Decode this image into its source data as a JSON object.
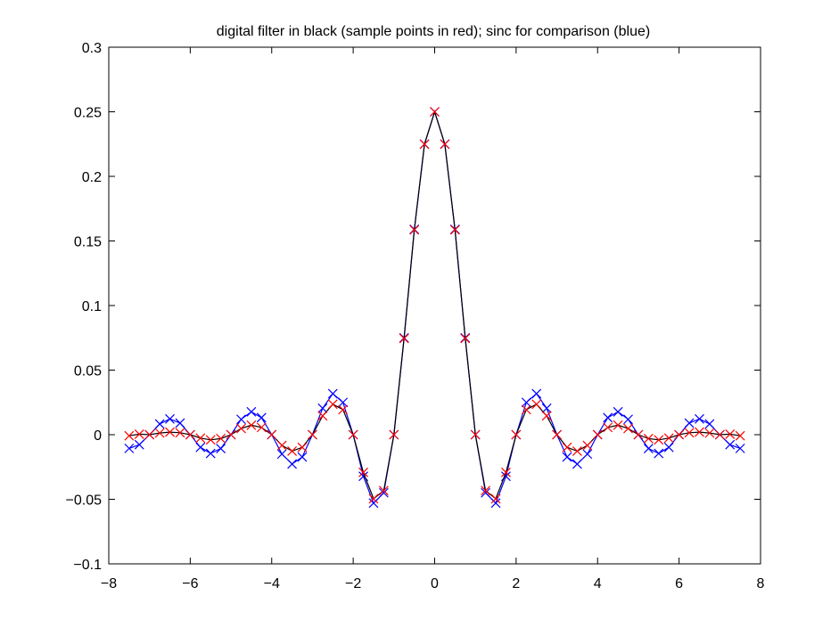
{
  "chart_data": {
    "type": "line",
    "title": "digital filter in black (sample points in red); sinc for comparison (blue)",
    "xlabel": "",
    "ylabel": "",
    "xlim": [
      -8,
      8
    ],
    "ylim": [
      -0.1,
      0.3
    ],
    "x_ticks": [
      -8,
      -6,
      -4,
      -2,
      0,
      2,
      4,
      6,
      8
    ],
    "y_ticks": [
      -0.1,
      -0.05,
      0,
      0.05,
      0.1,
      0.15,
      0.2,
      0.25,
      0.3
    ],
    "x_tick_labels": [
      "−8",
      "−6",
      "−4",
      "−2",
      "0",
      "2",
      "4",
      "6",
      "8"
    ],
    "y_tick_labels": [
      "−0.1",
      "−0.05",
      "0",
      "0.05",
      "0.1",
      "0.15",
      "0.2",
      "0.25",
      "0.3"
    ],
    "grid": false,
    "legend": "none",
    "x": [
      -7.5,
      -7.25,
      -7.0,
      -6.75,
      -6.5,
      -6.25,
      -6.0,
      -5.75,
      -5.5,
      -5.25,
      -5.0,
      -4.75,
      -4.5,
      -4.25,
      -4.0,
      -3.75,
      -3.5,
      -3.25,
      -3.0,
      -2.75,
      -2.5,
      -2.25,
      -2.0,
      -1.75,
      -1.5,
      -1.25,
      -1.0,
      -0.75,
      -0.5,
      -0.25,
      0.0,
      0.25,
      0.5,
      0.75,
      1.0,
      1.25,
      1.5,
      1.75,
      2.0,
      2.25,
      2.5,
      2.75,
      3.0,
      3.25,
      3.5,
      3.75,
      4.0,
      4.25,
      4.5,
      4.75,
      5.0,
      5.25,
      5.5,
      5.75,
      6.0,
      6.25,
      6.5,
      6.75,
      7.0,
      7.25,
      7.5
    ],
    "series": [
      {
        "color": "#0000ff",
        "marker": "x",
        "values": [
          -0.0106,
          -0.0077,
          0,
          0.0083,
          0.0122,
          0.009,
          0,
          -0.0098,
          -0.0145,
          -0.0107,
          0,
          0.0119,
          0.0177,
          0.0132,
          0,
          -0.015,
          -0.0227,
          -0.0173,
          0,
          0.0205,
          0.0318,
          0.025,
          0,
          -0.0322,
          -0.053,
          -0.045,
          0,
          0.075,
          0.159,
          0.225,
          0.25,
          0.225,
          0.159,
          0.075,
          0,
          -0.045,
          -0.053,
          -0.0322,
          0,
          0.025,
          0.0318,
          0.0205,
          0,
          -0.0173,
          -0.0227,
          -0.015,
          0,
          0.0132,
          0.0177,
          0.0119,
          0,
          -0.0107,
          -0.0145,
          -0.0098,
          0,
          0.009,
          0.0122,
          0.0083,
          0,
          -0.0077,
          -0.0106
        ]
      },
      {
        "color": "#000000",
        "marker": "",
        "values": [
          -0.0008,
          0.0004,
          0,
          0.0013,
          0.002,
          0.0015,
          0,
          -0.0026,
          -0.004,
          -0.003,
          0,
          0.0048,
          0.0074,
          0.0056,
          0,
          -0.0083,
          -0.0127,
          -0.0098,
          0,
          0.0146,
          0.0236,
          0.0194,
          0,
          -0.0292,
          -0.0496,
          -0.0433,
          0,
          0.0745,
          0.1586,
          0.2249,
          0.25,
          0.2249,
          0.1586,
          0.0745,
          0,
          -0.0433,
          -0.0496,
          -0.0292,
          0,
          0.0194,
          0.0236,
          0.0146,
          0,
          -0.0098,
          -0.0127,
          -0.0083,
          0,
          0.0056,
          0.0074,
          0.0048,
          0,
          -0.003,
          -0.004,
          -0.0026,
          0,
          0.0015,
          0.002,
          0.0013,
          0,
          0.0004,
          -0.0008
        ]
      },
      {
        "color": "#ff0000",
        "marker": "x",
        "values": [
          -0.0008,
          0.0004,
          0,
          0.0013,
          0.002,
          0.0015,
          0,
          -0.0026,
          -0.004,
          -0.003,
          0,
          0.0048,
          0.0074,
          0.0056,
          0,
          -0.0083,
          -0.0127,
          -0.0098,
          0,
          0.0146,
          0.0236,
          0.0194,
          0,
          -0.0292,
          -0.0496,
          -0.0433,
          0,
          0.0745,
          0.1586,
          0.2249,
          0.25,
          0.2249,
          0.1586,
          0.0745,
          0,
          -0.0433,
          -0.0496,
          -0.0292,
          0,
          0.0194,
          0.0236,
          0.0146,
          0,
          -0.0098,
          -0.0127,
          -0.0083,
          0,
          0.0056,
          0.0074,
          0.0048,
          0,
          -0.003,
          -0.004,
          -0.0026,
          0,
          0.0015,
          0.002,
          0.0013,
          0,
          0.0004,
          -0.0008
        ]
      }
    ]
  }
}
